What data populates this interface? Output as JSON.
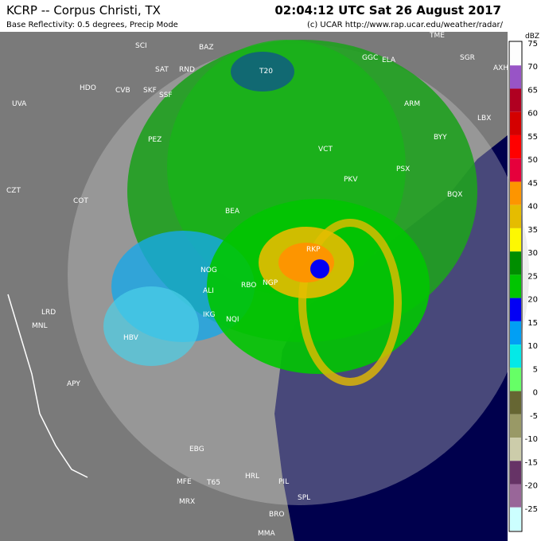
{
  "header": {
    "title": "KCRP -- Corpus Christi, TX",
    "time": "02:04:12 UTC Sat 26 August 2017",
    "subtitle": "Base Reflectivity: 0.5 degrees, Precip Mode",
    "credit": "(c) UCAR  http://www.rap.ucar.edu/weather/radar/"
  },
  "legend": {
    "unit": "dBZ",
    "entries": [
      {
        "label": "75",
        "color": "#fdfdfd"
      },
      {
        "label": "70",
        "color": "#9854c6"
      },
      {
        "label": "65",
        "color": "#b00021"
      },
      {
        "label": "60",
        "color": "#d40000"
      },
      {
        "label": "55",
        "color": "#ff0000"
      },
      {
        "label": "50",
        "color": "#e6003c"
      },
      {
        "label": "45",
        "color": "#fd9500"
      },
      {
        "label": "40",
        "color": "#e5bc00"
      },
      {
        "label": "35",
        "color": "#fdf802"
      },
      {
        "label": "30",
        "color": "#008e00"
      },
      {
        "label": "25",
        "color": "#01c501"
      },
      {
        "label": "20",
        "color": "#0300f4"
      },
      {
        "label": "15",
        "color": "#019ff4"
      },
      {
        "label": "10",
        "color": "#04e9e7"
      },
      {
        "label": "5",
        "color": "#66ff66"
      },
      {
        "label": "0",
        "color": "#666633"
      },
      {
        "label": "-5",
        "color": "#999966"
      },
      {
        "label": "-10",
        "color": "#ccccaa"
      },
      {
        "label": "-15",
        "color": "#663366"
      },
      {
        "label": "-20",
        "color": "#996699"
      },
      {
        "label": "-25",
        "color": "#ccffff"
      }
    ]
  },
  "stations": [
    "SCI",
    "BAZ",
    "SAT",
    "RND",
    "HDO",
    "CVB",
    "SKF",
    "SSF",
    "UVA",
    "PEZ",
    "T20",
    "GGC",
    "ELA",
    "TME",
    "SGR",
    "AXH",
    "ARM",
    "LBX",
    "VCT",
    "BYY",
    "PKV",
    "PSX",
    "BQX",
    "COT",
    "CZT",
    "BEA",
    "RKP",
    "NOG",
    "ALI",
    "RBO",
    "NGP",
    "LRD",
    "MNL",
    "HBV",
    "IKG",
    "NQI",
    "APY",
    "EBG",
    "HRL",
    "T65",
    "MFE",
    "MRX",
    "PIL",
    "SPL",
    "BRO",
    "MMA"
  ]
}
